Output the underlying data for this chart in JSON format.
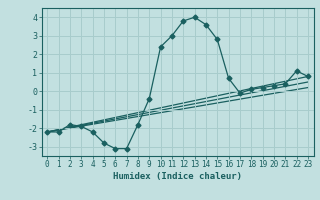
{
  "xlabel": "Humidex (Indice chaleur)",
  "ylabel": "",
  "bg_color": "#c2e0e0",
  "line_color": "#1a6060",
  "grid_color": "#a8cccc",
  "xlim": [
    -0.5,
    23.5
  ],
  "ylim": [
    -3.5,
    4.5
  ],
  "xticks": [
    0,
    1,
    2,
    3,
    4,
    5,
    6,
    7,
    8,
    9,
    10,
    11,
    12,
    13,
    14,
    15,
    16,
    17,
    18,
    19,
    20,
    21,
    22,
    23
  ],
  "yticks": [
    -3,
    -2,
    -1,
    0,
    1,
    2,
    3,
    4
  ],
  "curve1_x": [
    0,
    1,
    2,
    3,
    4,
    5,
    6,
    7,
    8,
    9,
    10,
    11,
    12,
    13,
    14,
    15,
    16,
    17,
    18,
    19,
    20,
    21,
    22,
    23
  ],
  "curve1_y": [
    -2.2,
    -2.2,
    -1.8,
    -1.9,
    -2.2,
    -2.8,
    -3.1,
    -3.1,
    -1.8,
    -0.4,
    2.4,
    3.0,
    3.8,
    4.0,
    3.6,
    2.8,
    0.7,
    -0.1,
    0.1,
    0.2,
    0.3,
    0.4,
    1.1,
    0.8
  ],
  "curve2_x": [
    0,
    23
  ],
  "curve2_y": [
    -2.2,
    0.8
  ],
  "curve3_x": [
    0,
    23
  ],
  "curve3_y": [
    -2.2,
    0.5
  ],
  "curve4_x": [
    0,
    23
  ],
  "curve4_y": [
    -2.2,
    0.2
  ]
}
